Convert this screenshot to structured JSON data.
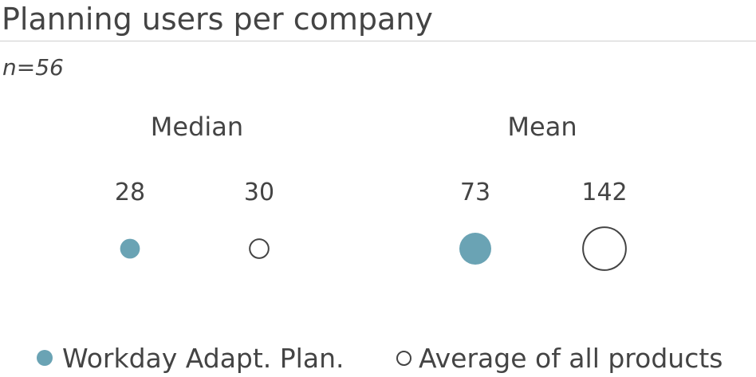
{
  "title": "Planning users per company",
  "subtitle": "n=56",
  "chart_data": {
    "type": "scatter",
    "groups": [
      "Median",
      "Mean"
    ],
    "series": [
      {
        "name": "Workday Adapt. Plan.",
        "values": [
          28,
          73
        ],
        "style": "filled",
        "color": "#6aa3b4"
      },
      {
        "name": "Average of all products",
        "values": [
          30,
          142
        ],
        "style": "open",
        "color": "#444444"
      }
    ],
    "encoding": "bubble size proportional to value"
  },
  "legend": [
    {
      "label": "Workday Adapt. Plan."
    },
    {
      "label": "Average of all products"
    }
  ]
}
